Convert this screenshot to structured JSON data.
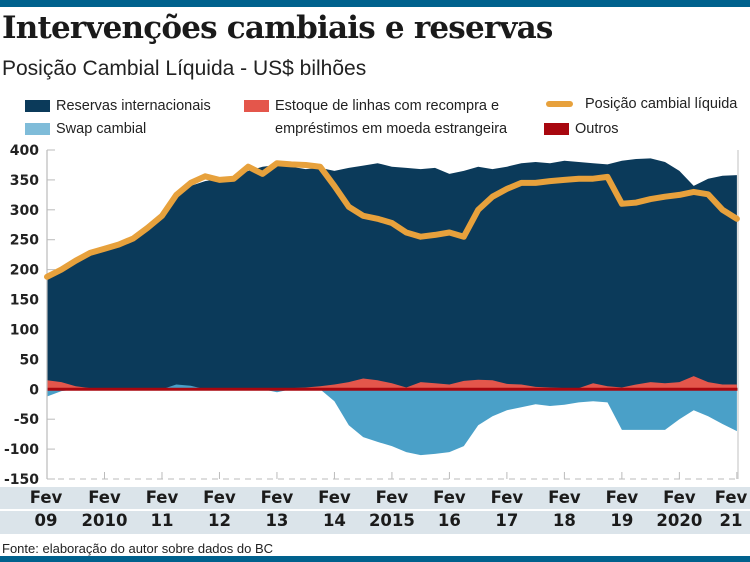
{
  "header": {
    "title": "Intervenções cambiais e reservas",
    "subtitle": "Posição Cambial Líquida - US$ bilhões"
  },
  "legend": {
    "reservas": "Reservas internacionais",
    "swap": "Swap cambial",
    "linhas_1": "Estoque de linhas com recompra e",
    "linhas_2": "empréstimos em moeda estrangeira",
    "posicao": "Posição cambial líquida",
    "outros": "Outros"
  },
  "source": "Fonte: elaboração do autor sobre dados do BC",
  "colors": {
    "brand_bar": "#00618d",
    "reservas": "#0b3a5a",
    "swap": "#4aa0c8",
    "linhas": "#e4564b",
    "outros": "#a8070f",
    "posicao": "#e7a13c",
    "x_band": "#dbe4ea"
  },
  "chart_data": {
    "type": "area",
    "title": "Intervenções cambiais e reservas",
    "subtitle": "Posição Cambial Líquida - US$ bilhões",
    "ylabel": "US$ bilhões",
    "xlabel": "",
    "ylim": [
      -150,
      400
    ],
    "yticks": [
      400,
      350,
      300,
      250,
      200,
      150,
      100,
      50,
      0,
      -50,
      -100,
      -150
    ],
    "ytick_labels": [
      "400",
      "350",
      "300",
      "250",
      "200",
      "150",
      "100",
      "50",
      "0",
      "-50",
      "-100",
      "-150"
    ],
    "xlim": [
      2009.08,
      2021.1
    ],
    "x_ticks": [
      2009.08,
      2010.08,
      2011.08,
      2012.08,
      2013.08,
      2014.08,
      2015.08,
      2016.08,
      2017.08,
      2018.08,
      2019.08,
      2020.08,
      2021.08
    ],
    "x_tick_labels": [
      {
        "top": "Fev",
        "bottom": "09"
      },
      {
        "top": "Fev",
        "bottom": "2010"
      },
      {
        "top": "Fev",
        "bottom": "11"
      },
      {
        "top": "Fev",
        "bottom": "12"
      },
      {
        "top": "Fev",
        "bottom": "13"
      },
      {
        "top": "Fev",
        "bottom": "14"
      },
      {
        "top": "Fev",
        "bottom": "2015"
      },
      {
        "top": "Fev",
        "bottom": "16"
      },
      {
        "top": "Fev",
        "bottom": "17"
      },
      {
        "top": "Fev",
        "bottom": "18"
      },
      {
        "top": "Fev",
        "bottom": "19"
      },
      {
        "top": "Fev",
        "bottom": "2020"
      },
      {
        "top": "Fev",
        "bottom": "21"
      }
    ],
    "grid": false,
    "legend_position": "top",
    "x": [
      2009.08,
      2009.33,
      2009.58,
      2009.83,
      2010.08,
      2010.33,
      2010.58,
      2010.83,
      2011.08,
      2011.33,
      2011.58,
      2011.83,
      2012.08,
      2012.33,
      2012.58,
      2012.83,
      2013.08,
      2013.33,
      2013.58,
      2013.83,
      2014.08,
      2014.33,
      2014.58,
      2014.83,
      2015.08,
      2015.33,
      2015.58,
      2015.83,
      2016.08,
      2016.33,
      2016.58,
      2016.83,
      2017.08,
      2017.33,
      2017.58,
      2017.83,
      2018.08,
      2018.33,
      2018.58,
      2018.83,
      2019.08,
      2019.33,
      2019.58,
      2019.83,
      2020.08,
      2020.33,
      2020.58,
      2020.83,
      2021.08
    ],
    "series": [
      {
        "name": "Reservas internacionais",
        "kind": "area",
        "values": [
          183,
          195,
          212,
          225,
          235,
          240,
          252,
          270,
          290,
          320,
          340,
          348,
          352,
          355,
          365,
          372,
          375,
          372,
          368,
          370,
          365,
          370,
          374,
          378,
          372,
          370,
          368,
          370,
          360,
          365,
          372,
          368,
          372,
          378,
          380,
          378,
          382,
          380,
          378,
          376,
          382,
          385,
          386,
          380,
          365,
          340,
          352,
          357,
          358
        ]
      },
      {
        "name": "Estoque de linhas com recompra e empréstimos em moeda estrangeira",
        "kind": "area",
        "values": [
          15,
          12,
          5,
          2,
          1,
          1,
          1,
          1,
          1,
          1,
          1,
          1,
          1,
          1,
          1,
          1,
          1,
          2,
          3,
          5,
          8,
          12,
          18,
          15,
          10,
          3,
          12,
          10,
          8,
          14,
          16,
          15,
          9,
          8,
          4,
          3,
          2,
          2,
          10,
          5,
          3,
          8,
          12,
          10,
          12,
          22,
          12,
          8,
          8
        ]
      },
      {
        "name": "Swap cambial",
        "kind": "area",
        "values": [
          -12,
          -3,
          0,
          0,
          0,
          0,
          0,
          0,
          0,
          8,
          6,
          0,
          0,
          0,
          0,
          0,
          -5,
          0,
          0,
          0,
          -20,
          -60,
          -80,
          -88,
          -95,
          -105,
          -110,
          -108,
          -105,
          -95,
          -60,
          -45,
          -35,
          -30,
          -25,
          -28,
          -26,
          -22,
          -20,
          -22,
          -68,
          -68,
          -68,
          -68,
          -50,
          -35,
          -45,
          -58,
          -70
        ]
      },
      {
        "name": "Outros",
        "kind": "area",
        "values": [
          -2,
          -2,
          -2,
          -2,
          -2,
          -2,
          -2,
          -2,
          -2,
          -2,
          -2,
          -2,
          -2,
          -2,
          -2,
          -2,
          -2,
          -2,
          -2,
          -2,
          -2,
          -2,
          -2,
          -2,
          -2,
          -2,
          -2,
          -2,
          -2,
          -2,
          -2,
          -2,
          -2,
          -2,
          -2,
          -2,
          -2,
          -2,
          -2,
          -2,
          -2,
          -2,
          -2,
          -2,
          -2,
          -2,
          -2,
          -2,
          -2
        ]
      },
      {
        "name": "Posição cambial líquida",
        "kind": "line",
        "values": [
          188,
          200,
          215,
          228,
          235,
          242,
          252,
          270,
          290,
          325,
          345,
          356,
          350,
          352,
          372,
          360,
          378,
          376,
          375,
          372,
          340,
          305,
          290,
          285,
          278,
          262,
          255,
          258,
          262,
          255,
          300,
          322,
          335,
          345,
          345,
          348,
          350,
          352,
          352,
          355,
          310,
          312,
          318,
          322,
          325,
          330,
          326,
          300,
          285
        ]
      }
    ]
  }
}
